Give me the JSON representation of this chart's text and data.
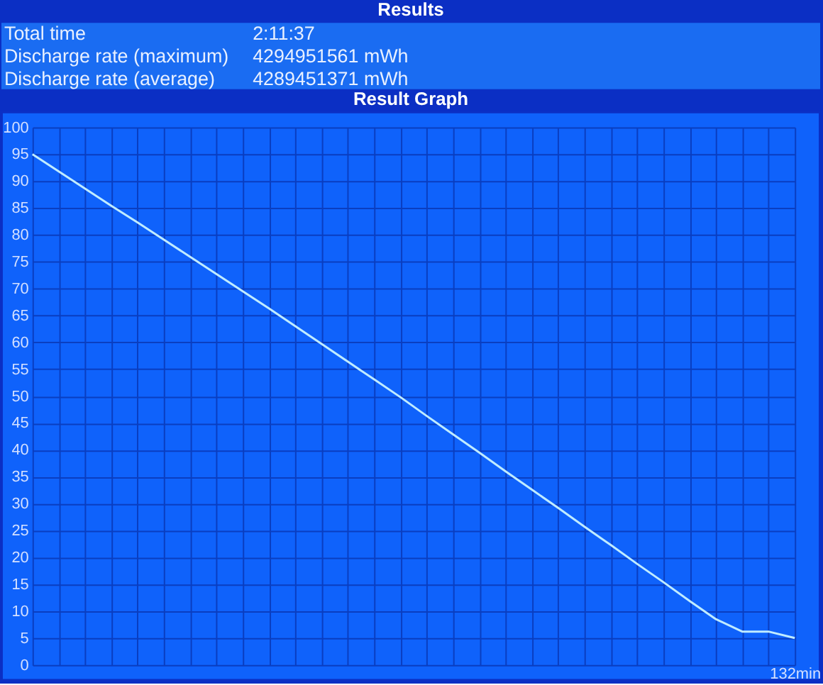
{
  "chart_data": [
    {
      "type": "other",
      "title": "Results",
      "annotations": [
        "Total time",
        "2:11:37",
        "Discharge rate (maximum)",
        "4294951561 mWh",
        "Discharge rate (average)",
        "4289451371 mWh"
      ]
    },
    {
      "type": "line",
      "title": "Result Graph",
      "categories": [
        null,
        null,
        null,
        null,
        null,
        null,
        null,
        null,
        null,
        null,
        null,
        null,
        null,
        null,
        null,
        null,
        null,
        null,
        null,
        null,
        null,
        null,
        null,
        null,
        null,
        null,
        null,
        null,
        null,
        "132min"
      ],
      "ylim": [
        0,
        100
      ],
      "yticks": [
        0,
        5,
        10,
        15,
        20,
        25,
        30,
        35,
        40,
        45,
        50,
        55,
        60,
        65,
        70,
        75,
        80,
        85,
        90,
        95,
        100
      ],
      "grid": true,
      "series": [
        {
          "color": "#c0ecff",
          "values": [
            95,
            91.8,
            88.6,
            85.4,
            82.3,
            79.1,
            75.9,
            72.7,
            69.5,
            66.3,
            63.0,
            59.7,
            56.4,
            53.1,
            49.8,
            46.3,
            42.9,
            39.5,
            36.0,
            32.6,
            29.2,
            25.7,
            22.3,
            18.8,
            15.4,
            11.9,
            8.5,
            6.2,
            6.2,
            5
          ]
        }
      ]
    }
  ]
}
